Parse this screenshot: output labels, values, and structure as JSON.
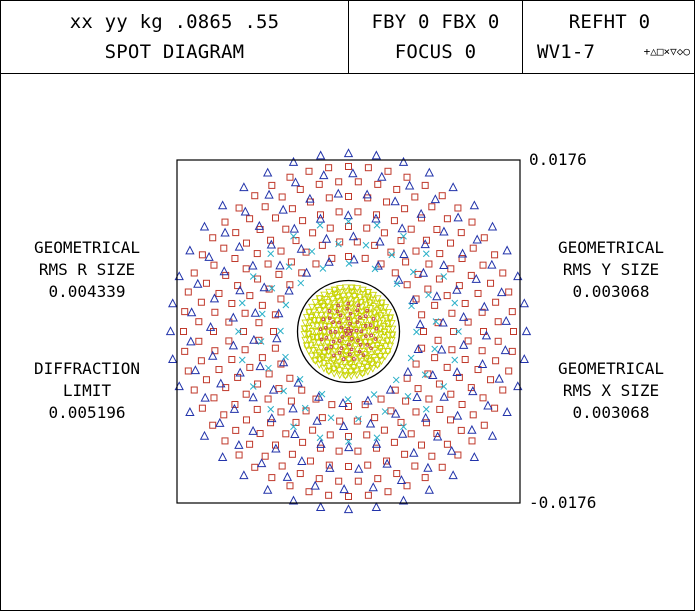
{
  "header": {
    "left_line1": "xx yy kg .0865 .55",
    "left_line2": "SPOT DIAGRAM",
    "mid_line1": "FBY 0 FBX 0",
    "mid_line2": "FOCUS 0",
    "right_line1": "REFHT 0",
    "right_line2": "WV1-7",
    "wavelength_symbols": "+△□×▽◇○"
  },
  "left_labels": {
    "rms_r": [
      "GEOMETRICAL",
      "RMS R SIZE",
      "0.004339"
    ],
    "diffraction": [
      "DIFFRACTION",
      "LIMIT",
      "0.005196"
    ]
  },
  "right_labels": {
    "rms_y": [
      "GEOMETRICAL",
      "RMS Y SIZE",
      "0.003068"
    ],
    "rms_x": [
      "GEOMETRICAL",
      "RMS X SIZE",
      "0.003068"
    ]
  },
  "scale": {
    "top": "0.0176",
    "bottom": "-0.0176"
  },
  "colors": {
    "square": "#c0392b",
    "triangle": "#2233aa",
    "cross": "#2ab0c8",
    "inner": "#c8d400",
    "core": "#c02860",
    "circle": "#000000"
  }
}
